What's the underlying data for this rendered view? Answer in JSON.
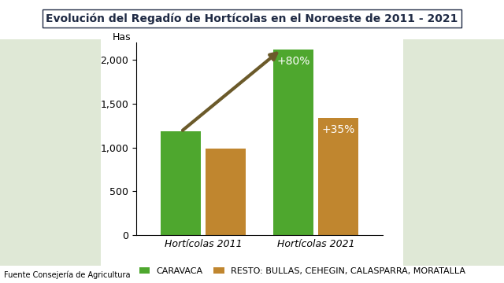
{
  "chart_data": {
    "type": "bar",
    "title": "Evolución del Regadío de Hortícolas en el Noroeste de 2011 - 2021",
    "y_label": "Has",
    "source": "Fuente Consejería de Agricultura",
    "categories": [
      "Hortícolas 2011",
      "Hortícolas 2021"
    ],
    "series": [
      {
        "name": "CARAVACA",
        "color": "#4ea72e",
        "values": [
          1180,
          2120
        ],
        "annotations": [
          null,
          "+80%"
        ]
      },
      {
        "name": "RESTO: BULLAS, CEHEGIN, CALASPARRA, MORATALLA",
        "color": "#c0862f",
        "values": [
          990,
          1340
        ],
        "annotations": [
          null,
          "+35%"
        ]
      }
    ],
    "ylim": [
      0,
      2200
    ],
    "yticks": [
      0,
      500,
      {
        "value": 1000,
        "label": "1,000"
      },
      {
        "value": 1500,
        "label": "1,500"
      },
      {
        "value": 2000,
        "label": "2,000"
      }
    ],
    "grid": false,
    "legend": "lower center"
  }
}
